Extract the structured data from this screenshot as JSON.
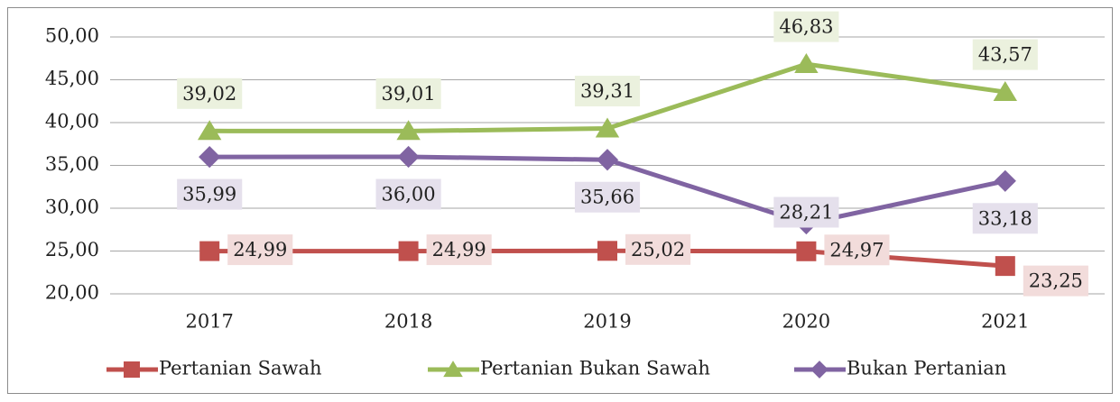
{
  "chart_data": {
    "type": "line",
    "categories": [
      "2017",
      "2018",
      "2019",
      "2020",
      "2021"
    ],
    "series": [
      {
        "name": "Pertanian Sawah",
        "color": "#c0504d",
        "label_bg": "#f2dcdb",
        "marker": "square",
        "values": [
          24.99,
          24.99,
          25.02,
          24.97,
          23.25
        ],
        "value_labels": [
          "24,99",
          "24,99",
          "25,02",
          "24,97",
          "23,25"
        ]
      },
      {
        "name": "Pertanian Bukan Sawah",
        "color": "#9bbb59",
        "label_bg": "#ebf1de",
        "marker": "triangle",
        "values": [
          39.02,
          39.01,
          39.31,
          46.83,
          43.57
        ],
        "value_labels": [
          "39,02",
          "39,01",
          "39,31",
          "46,83",
          "43,57"
        ]
      },
      {
        "name": "Bukan Pertanian",
        "color": "#8064a2",
        "label_bg": "#e5e0ec",
        "marker": "diamond",
        "values": [
          35.99,
          36.0,
          35.66,
          28.21,
          33.18
        ],
        "value_labels": [
          "35,99",
          "36,00",
          "35,66",
          "28,21",
          "33,18"
        ]
      }
    ],
    "ylim": [
      20,
      50
    ],
    "yticks": [
      {
        "value": 20,
        "label": "20,00"
      },
      {
        "value": 25,
        "label": "25,00"
      },
      {
        "value": 30,
        "label": "30,00"
      },
      {
        "value": 35,
        "label": "35,00"
      },
      {
        "value": 40,
        "label": "40,00"
      },
      {
        "value": 45,
        "label": "45,00"
      },
      {
        "value": 50,
        "label": "50,00"
      }
    ],
    "grid": true,
    "legend": "bottom"
  }
}
